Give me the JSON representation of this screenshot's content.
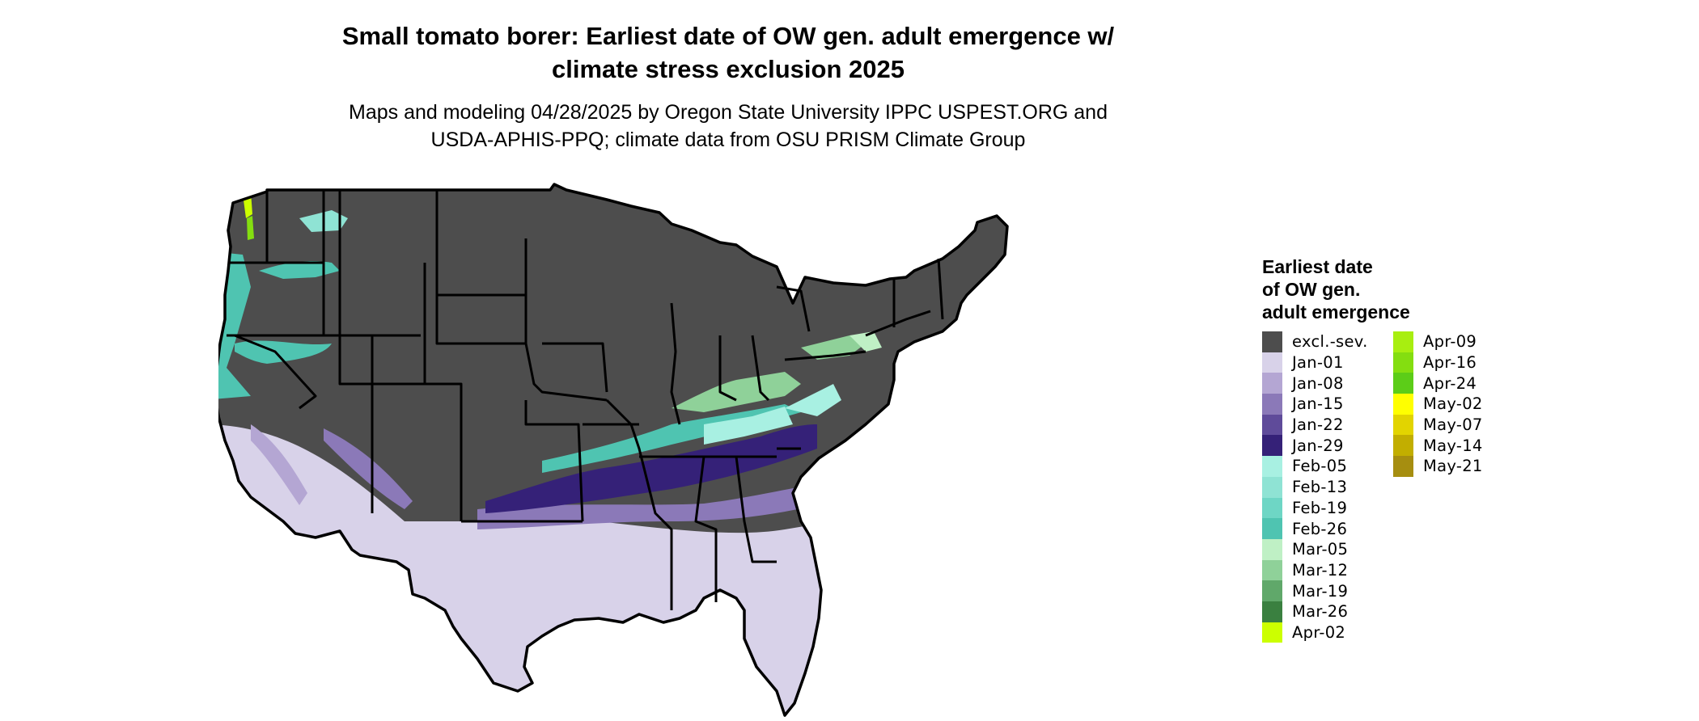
{
  "map": {
    "title_line1": "Small tomato borer: Earliest date of OW gen. adult emergence w/",
    "title_line2": "climate stress exclusion 2025",
    "subtitle_line1": "Maps and modeling 04/28/2025 by Oregon State University IPPC USPEST.ORG and",
    "subtitle_line2": "USDA-APHIS-PPQ; climate data from OSU PRISM Climate Group"
  },
  "legend": {
    "title_lines": [
      "Earliest date",
      "of OW gen.",
      "adult emergence"
    ],
    "column1": [
      {
        "label": "excl.-sev.",
        "color": "#4d4d4d"
      },
      {
        "label": "Jan-01",
        "color": "#d8d2e9"
      },
      {
        "label": "Jan-08",
        "color": "#b4a6d3"
      },
      {
        "label": "Jan-15",
        "color": "#8b79b8"
      },
      {
        "label": "Jan-22",
        "color": "#5f4b9a"
      },
      {
        "label": "Jan-29",
        "color": "#352178"
      },
      {
        "label": "Feb-05",
        "color": "#a8f0e2"
      },
      {
        "label": "Feb-13",
        "color": "#8fe3d4"
      },
      {
        "label": "Feb-19",
        "color": "#6ed6c5"
      },
      {
        "label": "Feb-26",
        "color": "#4fc4b1"
      },
      {
        "label": "Mar-05",
        "color": "#bff0c5"
      },
      {
        "label": "Mar-12",
        "color": "#8fd199"
      },
      {
        "label": "Mar-19",
        "color": "#60a86a"
      },
      {
        "label": "Mar-26",
        "color": "#3a8040"
      },
      {
        "label": "Apr-02",
        "color": "#ccff00"
      }
    ],
    "column2": [
      {
        "label": "Apr-09",
        "color": "#a8ee10"
      },
      {
        "label": "Apr-16",
        "color": "#84de10"
      },
      {
        "label": "Apr-24",
        "color": "#5ccd18"
      },
      {
        "label": "May-02",
        "color": "#ffff00"
      },
      {
        "label": "May-07",
        "color": "#e2d400"
      },
      {
        "label": "May-14",
        "color": "#c2ae00"
      },
      {
        "label": "May-21",
        "color": "#a68e10"
      }
    ]
  }
}
